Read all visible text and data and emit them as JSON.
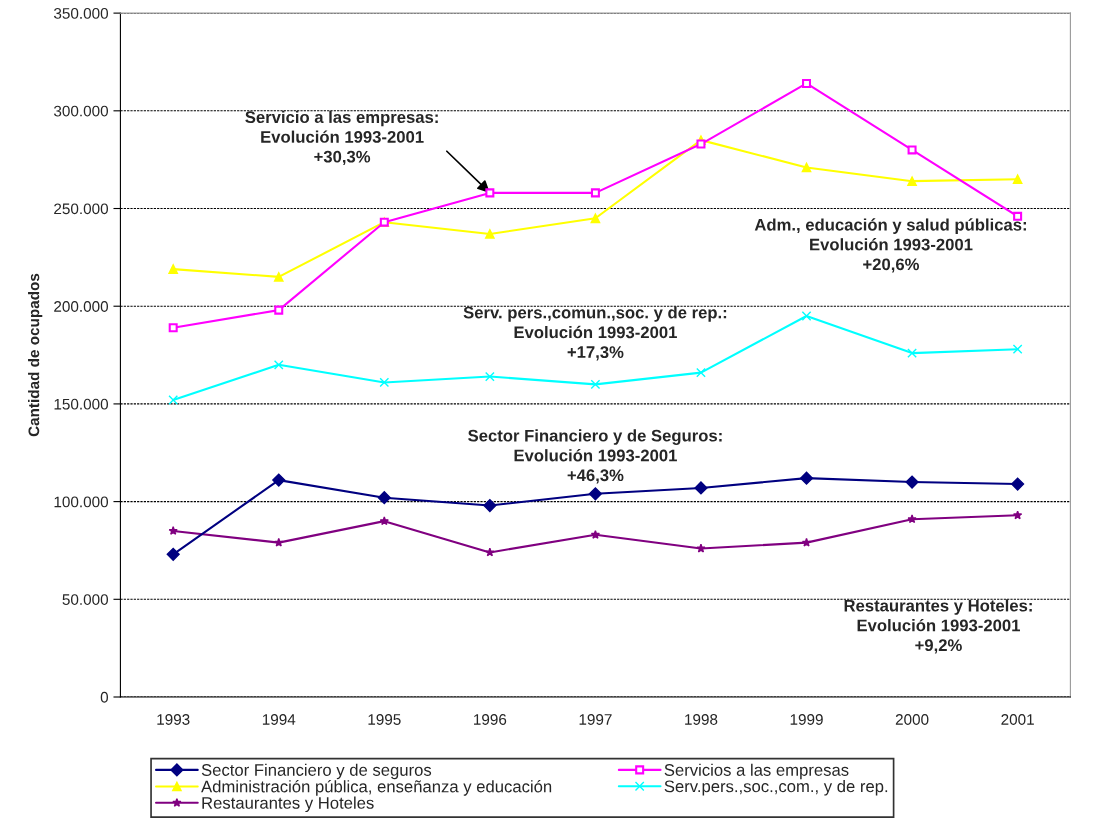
{
  "chart_data": {
    "type": "line",
    "ylabel": "Cantidad de ocupados",
    "categories": [
      "1993",
      "1994",
      "1995",
      "1996",
      "1997",
      "1998",
      "1999",
      "2000",
      "2001"
    ],
    "ylim": [
      0,
      350000
    ],
    "yticks": [
      0,
      {
        "value": 50000,
        "label": "50.000"
      },
      {
        "value": 100000,
        "label": "100.000"
      },
      {
        "value": 150000,
        "label": "150.000"
      },
      {
        "value": 200000,
        "label": "200.000"
      },
      {
        "value": 250000,
        "label": "250.000"
      },
      {
        "value": 300000,
        "label": "300.000"
      },
      {
        "value": 350000,
        "label": "350.000"
      }
    ],
    "grid": "y",
    "legend": "bottom",
    "line_style": "solid",
    "series": [
      {
        "name": "Sector Financiero y de seguros",
        "color": "#000080",
        "marker": "diamond",
        "values": [
          73000,
          111000,
          102000,
          98000,
          104000,
          107000,
          112000,
          110000,
          109000
        ]
      },
      {
        "name": "Servicios a las empresas",
        "color": "#ff00ff",
        "marker": "square",
        "values": [
          189000,
          198000,
          243000,
          258000,
          258000,
          283000,
          314000,
          280000,
          246000
        ]
      },
      {
        "name": "Administración pública, enseñanza y educación",
        "color": "#ffff00",
        "marker": "triangle",
        "values": [
          219000,
          215000,
          243000,
          237000,
          245000,
          285000,
          271000,
          264000,
          265000
        ]
      },
      {
        "name": "Serv.pers.,soc.,com., y de rep.",
        "color": "#00ffff",
        "marker": "cross",
        "values": [
          152000,
          170000,
          161000,
          164000,
          160000,
          166000,
          195000,
          176000,
          178000
        ]
      },
      {
        "name": "Restaurantes y Hoteles",
        "color": "#800080",
        "marker": "star",
        "values": [
          85000,
          79000,
          90000,
          74000,
          83000,
          76000,
          79000,
          91000,
          93000
        ]
      }
    ],
    "annotations": [
      {
        "text": "Servicio a las empresas:\nEvolución 1993-2001\n+30,3%",
        "x": "1996",
        "y": 258000
      },
      "Adm., educación y salud públicas:\nEvolución 1993-2001\n+20,6%",
      "Serv. pers.,comun.,soc. y de rep.:\nEvolución 1993-2001\n+17,3%",
      "Sector Financiero y de Seguros:\nEvolución 1993-2001\n+46,3%",
      "Restaurantes y Hoteles:\nEvolución 1993-2001\n+9,2%"
    ]
  }
}
